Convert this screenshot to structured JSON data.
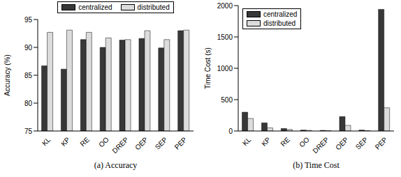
{
  "chart_data": [
    {
      "type": "bar",
      "title": "(a) Accuracy",
      "y_label": "Accuracy (%)",
      "categories": [
        "KL",
        "KP",
        "RE",
        "OO",
        "DREP",
        "OEP",
        "SEP",
        "PEP"
      ],
      "series": [
        {
          "name": "centralized",
          "color": "#383838",
          "values": [
            86.7,
            86.1,
            91.4,
            90.0,
            91.3,
            91.6,
            89.9,
            93.0
          ]
        },
        {
          "name": "distributed",
          "color": "#dcdcdc",
          "values": [
            92.7,
            93.1,
            92.7,
            91.7,
            91.4,
            93.0,
            91.4,
            93.1
          ]
        }
      ],
      "ylim": [
        75,
        95
      ],
      "yticks": [
        75,
        80,
        85,
        90,
        95
      ],
      "legend": "top"
    },
    {
      "type": "bar",
      "title": "(b) Time Cost",
      "y_label": "Time Cost (s)",
      "categories": [
        "KL",
        "KP",
        "RE",
        "OO",
        "DREP",
        "OEP",
        "SEP",
        "PEP"
      ],
      "series": [
        {
          "name": "centralized",
          "color": "#383838",
          "values": [
            300,
            130,
            40,
            15,
            10,
            230,
            15,
            1940
          ]
        },
        {
          "name": "distributed",
          "color": "#dcdcdc",
          "values": [
            200,
            50,
            25,
            10,
            5,
            90,
            5,
            370
          ]
        }
      ],
      "ylim": [
        0,
        2000
      ],
      "yticks": [
        0,
        500,
        1000,
        1500,
        2000
      ],
      "legend": "upper left"
    }
  ]
}
